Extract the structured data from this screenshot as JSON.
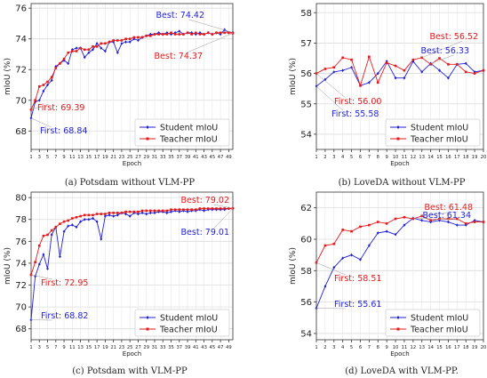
{
  "chart_data": [
    {
      "type": "line",
      "caption": "(a) Potsdam without VLM-PP",
      "xlabel": "Epoch",
      "ylabel": "mIoU (%)",
      "xlim": [
        1,
        50
      ],
      "ylim": [
        66.8,
        76.3
      ],
      "yticks": [
        68,
        70,
        72,
        74,
        76
      ],
      "xticks": [
        1,
        3,
        5,
        7,
        9,
        11,
        13,
        15,
        17,
        19,
        21,
        23,
        25,
        27,
        29,
        31,
        33,
        35,
        37,
        39,
        41,
        43,
        45,
        47,
        49
      ],
      "grid": true,
      "legend": "bottom-right",
      "series": [
        {
          "name": "Student mIoU",
          "color": "#1f1fd6",
          "marker": "diamond",
          "x": [
            1,
            2,
            3,
            4,
            5,
            6,
            7,
            8,
            9,
            10,
            11,
            12,
            13,
            14,
            15,
            16,
            17,
            18,
            19,
            20,
            21,
            22,
            23,
            24,
            25,
            26,
            27,
            28,
            29,
            30,
            31,
            32,
            33,
            34,
            35,
            36,
            37,
            38,
            39,
            40,
            41,
            42,
            43,
            44,
            45,
            46,
            47,
            48,
            49,
            50
          ],
          "values": [
            68.84,
            69.9,
            70.0,
            70.6,
            71.0,
            71.3,
            72.2,
            72.4,
            72.6,
            72.4,
            73.3,
            73.4,
            73.4,
            72.8,
            73.1,
            73.3,
            73.7,
            73.4,
            73.2,
            73.8,
            73.8,
            73.1,
            73.7,
            73.8,
            73.8,
            74.0,
            73.9,
            74.1,
            74.2,
            74.3,
            74.3,
            74.4,
            74.3,
            74.4,
            74.3,
            74.4,
            74.5,
            74.3,
            74.4,
            74.4,
            74.3,
            74.4,
            74.3,
            74.4,
            74.3,
            74.4,
            74.3,
            74.6,
            74.4,
            74.42
          ]
        },
        {
          "name": "Teacher mIoU",
          "color": "#e31a1c",
          "marker": "square",
          "x": [
            1,
            2,
            3,
            4,
            5,
            6,
            7,
            8,
            9,
            10,
            11,
            12,
            13,
            14,
            15,
            16,
            17,
            18,
            19,
            20,
            21,
            22,
            23,
            24,
            25,
            26,
            27,
            28,
            29,
            30,
            31,
            32,
            33,
            34,
            35,
            36,
            37,
            38,
            39,
            40,
            41,
            42,
            43,
            44,
            45,
            46,
            47,
            48,
            49,
            50
          ],
          "values": [
            69.39,
            70.0,
            70.9,
            71.0,
            71.2,
            71.5,
            72.1,
            72.4,
            72.7,
            73.1,
            73.2,
            73.2,
            73.4,
            73.3,
            73.3,
            73.5,
            73.5,
            73.7,
            73.7,
            73.8,
            73.9,
            73.9,
            73.9,
            74.0,
            74.0,
            74.1,
            74.1,
            74.1,
            74.2,
            74.2,
            74.3,
            74.3,
            74.3,
            74.3,
            74.4,
            74.3,
            74.3,
            74.3,
            74.4,
            74.3,
            74.4,
            74.3,
            74.3,
            74.4,
            74.3,
            74.4,
            74.4,
            74.4,
            74.4,
            74.37
          ]
        }
      ],
      "annotations": [
        {
          "text": "Best: 74.42",
          "color": "#1f1fd6",
          "series": 0,
          "x": 50,
          "y": 74.42
        },
        {
          "text": "Best: 74.37",
          "color": "#e31a1c",
          "series": 1,
          "x": 50,
          "y": 74.37
        },
        {
          "text": "First: 69.39",
          "color": "#e31a1c",
          "series": 1,
          "x": 1,
          "y": 69.39
        },
        {
          "text": "First: 68.84",
          "color": "#1f1fd6",
          "series": 0,
          "x": 1,
          "y": 68.84
        }
      ]
    },
    {
      "type": "line",
      "caption": "(b) LoveDA without VLM-PP",
      "xlabel": "Epoch",
      "ylabel": "mIoU (%)",
      "xlim": [
        1,
        20
      ],
      "ylim": [
        53.5,
        58.3
      ],
      "yticks": [
        54,
        55,
        56,
        57,
        58
      ],
      "xticks": [
        1,
        2,
        3,
        4,
        5,
        6,
        7,
        8,
        9,
        10,
        11,
        12,
        13,
        14,
        15,
        16,
        17,
        18,
        19,
        20
      ],
      "grid": true,
      "legend": "bottom-right",
      "series": [
        {
          "name": "Student mIoU",
          "color": "#1f1fd6",
          "marker": "diamond",
          "x": [
            1,
            2,
            3,
            4,
            5,
            6,
            7,
            8,
            9,
            10,
            11,
            12,
            13,
            14,
            15,
            16,
            17,
            18,
            19,
            20
          ],
          "values": [
            55.58,
            55.8,
            56.05,
            56.1,
            56.2,
            55.6,
            55.7,
            56.0,
            56.4,
            55.85,
            55.85,
            56.4,
            56.05,
            56.33,
            56.1,
            55.85,
            56.3,
            56.33,
            56.05,
            56.1
          ]
        },
        {
          "name": "Teacher mIoU",
          "color": "#e31a1c",
          "marker": "square",
          "x": [
            1,
            2,
            3,
            4,
            5,
            6,
            7,
            8,
            9,
            10,
            11,
            12,
            13,
            14,
            15,
            16,
            17,
            18,
            19,
            20
          ],
          "values": [
            56.0,
            56.15,
            56.2,
            56.52,
            56.45,
            55.6,
            56.55,
            55.7,
            56.35,
            56.25,
            56.1,
            56.45,
            56.52,
            56.3,
            56.5,
            56.3,
            56.3,
            56.05,
            56.0,
            56.1
          ]
        }
      ],
      "annotations": [
        {
          "text": "Best: 56.52",
          "color": "#e31a1c",
          "series": 1,
          "x": 13,
          "y": 56.52
        },
        {
          "text": "Best: 56.33",
          "color": "#1f1fd6",
          "series": 0,
          "x": 14,
          "y": 56.33
        },
        {
          "text": "First: 56.00",
          "color": "#e31a1c",
          "series": 1,
          "x": 1,
          "y": 56.0
        },
        {
          "text": "First: 55.58",
          "color": "#1f1fd6",
          "series": 0,
          "x": 1,
          "y": 55.58
        }
      ]
    },
    {
      "type": "line",
      "caption": "(c) Potsdam with VLM-PP",
      "xlabel": "Epoch",
      "ylabel": "mIoU (%)",
      "xlim": [
        1,
        50
      ],
      "ylim": [
        67,
        80.5
      ],
      "yticks": [
        68,
        70,
        72,
        74,
        76,
        78,
        80
      ],
      "xticks": [
        1,
        3,
        5,
        7,
        9,
        11,
        13,
        15,
        17,
        19,
        21,
        23,
        25,
        27,
        29,
        31,
        33,
        35,
        37,
        39,
        41,
        43,
        45,
        47,
        49
      ],
      "grid": true,
      "legend": "bottom-right",
      "series": [
        {
          "name": "Student mIoU",
          "color": "#1f1fd6",
          "marker": "diamond",
          "x": [
            1,
            2,
            3,
            4,
            5,
            6,
            7,
            8,
            9,
            10,
            11,
            12,
            13,
            14,
            15,
            16,
            17,
            18,
            19,
            20,
            21,
            22,
            23,
            24,
            25,
            26,
            27,
            28,
            29,
            30,
            31,
            32,
            33,
            34,
            35,
            36,
            37,
            38,
            39,
            40,
            41,
            42,
            43,
            44,
            45,
            46,
            47,
            48,
            49,
            50
          ],
          "values": [
            68.82,
            72.8,
            73.9,
            74.8,
            73.5,
            76.6,
            77.3,
            74.6,
            76.9,
            77.4,
            77.5,
            77.3,
            77.8,
            78.0,
            78.0,
            78.1,
            77.8,
            76.2,
            78.3,
            78.4,
            78.3,
            78.4,
            78.6,
            78.5,
            78.3,
            78.6,
            78.5,
            78.6,
            78.5,
            78.6,
            78.6,
            78.7,
            78.7,
            78.6,
            78.7,
            78.8,
            78.7,
            78.8,
            78.7,
            78.8,
            78.8,
            78.9,
            78.8,
            78.9,
            78.9,
            78.9,
            78.9,
            78.9,
            79.0,
            79.01
          ]
        },
        {
          "name": "Teacher mIoU",
          "color": "#e31a1c",
          "marker": "square",
          "x": [
            1,
            2,
            3,
            4,
            5,
            6,
            7,
            8,
            9,
            10,
            11,
            12,
            13,
            14,
            15,
            16,
            17,
            18,
            19,
            20,
            21,
            22,
            23,
            24,
            25,
            26,
            27,
            28,
            29,
            30,
            31,
            32,
            33,
            34,
            35,
            36,
            37,
            38,
            39,
            40,
            41,
            42,
            43,
            44,
            45,
            46,
            47,
            48,
            49,
            50
          ],
          "values": [
            72.95,
            74.1,
            75.6,
            76.5,
            76.6,
            77.0,
            77.3,
            77.6,
            77.8,
            77.9,
            78.1,
            78.2,
            78.3,
            78.4,
            78.4,
            78.4,
            78.5,
            78.5,
            78.5,
            78.6,
            78.6,
            78.6,
            78.6,
            78.7,
            78.7,
            78.7,
            78.7,
            78.8,
            78.8,
            78.8,
            78.8,
            78.8,
            78.8,
            78.8,
            78.9,
            78.9,
            78.9,
            78.9,
            78.9,
            78.9,
            78.9,
            79.0,
            79.0,
            79.0,
            79.0,
            79.0,
            79.0,
            79.0,
            79.0,
            79.02
          ]
        }
      ],
      "annotations": [
        {
          "text": "Best: 79.02",
          "color": "#e31a1c",
          "series": 1,
          "x": 50,
          "y": 79.02
        },
        {
          "text": "Best: 79.01",
          "color": "#1f1fd6",
          "series": 0,
          "x": 50,
          "y": 79.01
        },
        {
          "text": "First: 72.95",
          "color": "#e31a1c",
          "series": 1,
          "x": 1,
          "y": 72.95
        },
        {
          "text": "First: 68.82",
          "color": "#1f1fd6",
          "series": 0,
          "x": 1,
          "y": 68.82
        }
      ]
    },
    {
      "type": "line",
      "caption": "(d) LoveDA with VLM-PP.",
      "xlabel": "Epoch",
      "ylabel": "mIoU (%)",
      "xlim": [
        1,
        20
      ],
      "ylim": [
        53.6,
        63.0
      ],
      "yticks": [
        54,
        56,
        58,
        60,
        62
      ],
      "xticks": [
        1,
        2,
        3,
        4,
        5,
        6,
        7,
        8,
        9,
        10,
        11,
        12,
        13,
        14,
        15,
        16,
        17,
        18,
        19,
        20
      ],
      "grid": true,
      "legend": "bottom-right",
      "series": [
        {
          "name": "Student mIoU",
          "color": "#1f1fd6",
          "marker": "diamond",
          "x": [
            1,
            2,
            3,
            4,
            5,
            6,
            7,
            8,
            9,
            10,
            11,
            12,
            13,
            14,
            15,
            16,
            17,
            18,
            19,
            20
          ],
          "values": [
            55.61,
            57.0,
            58.2,
            58.8,
            59.0,
            58.7,
            59.6,
            60.4,
            60.5,
            60.3,
            60.9,
            61.34,
            61.2,
            61.1,
            61.2,
            61.1,
            60.9,
            60.9,
            61.2,
            61.1
          ]
        },
        {
          "name": "Teacher mIoU",
          "color": "#e31a1c",
          "marker": "square",
          "x": [
            1,
            2,
            3,
            4,
            5,
            6,
            7,
            8,
            9,
            10,
            11,
            12,
            13,
            14,
            15,
            16,
            17,
            18,
            19,
            20
          ],
          "values": [
            58.51,
            59.6,
            59.7,
            60.6,
            60.5,
            60.8,
            60.9,
            61.1,
            61.0,
            61.3,
            61.4,
            61.3,
            61.48,
            61.2,
            61.3,
            61.3,
            61.3,
            61.0,
            61.1,
            61.1
          ]
        }
      ],
      "annotations": [
        {
          "text": "Best: 61.48",
          "color": "#e31a1c",
          "series": 1,
          "x": 13,
          "y": 61.48
        },
        {
          "text": "Best: 61.34",
          "color": "#1f1fd6",
          "series": 0,
          "x": 12,
          "y": 61.34
        },
        {
          "text": "First: 58.51",
          "color": "#e31a1c",
          "series": 1,
          "x": 1,
          "y": 58.51
        },
        {
          "text": "First: 55.61",
          "color": "#1f1fd6",
          "series": 0,
          "x": 1,
          "y": 55.61
        }
      ]
    }
  ]
}
